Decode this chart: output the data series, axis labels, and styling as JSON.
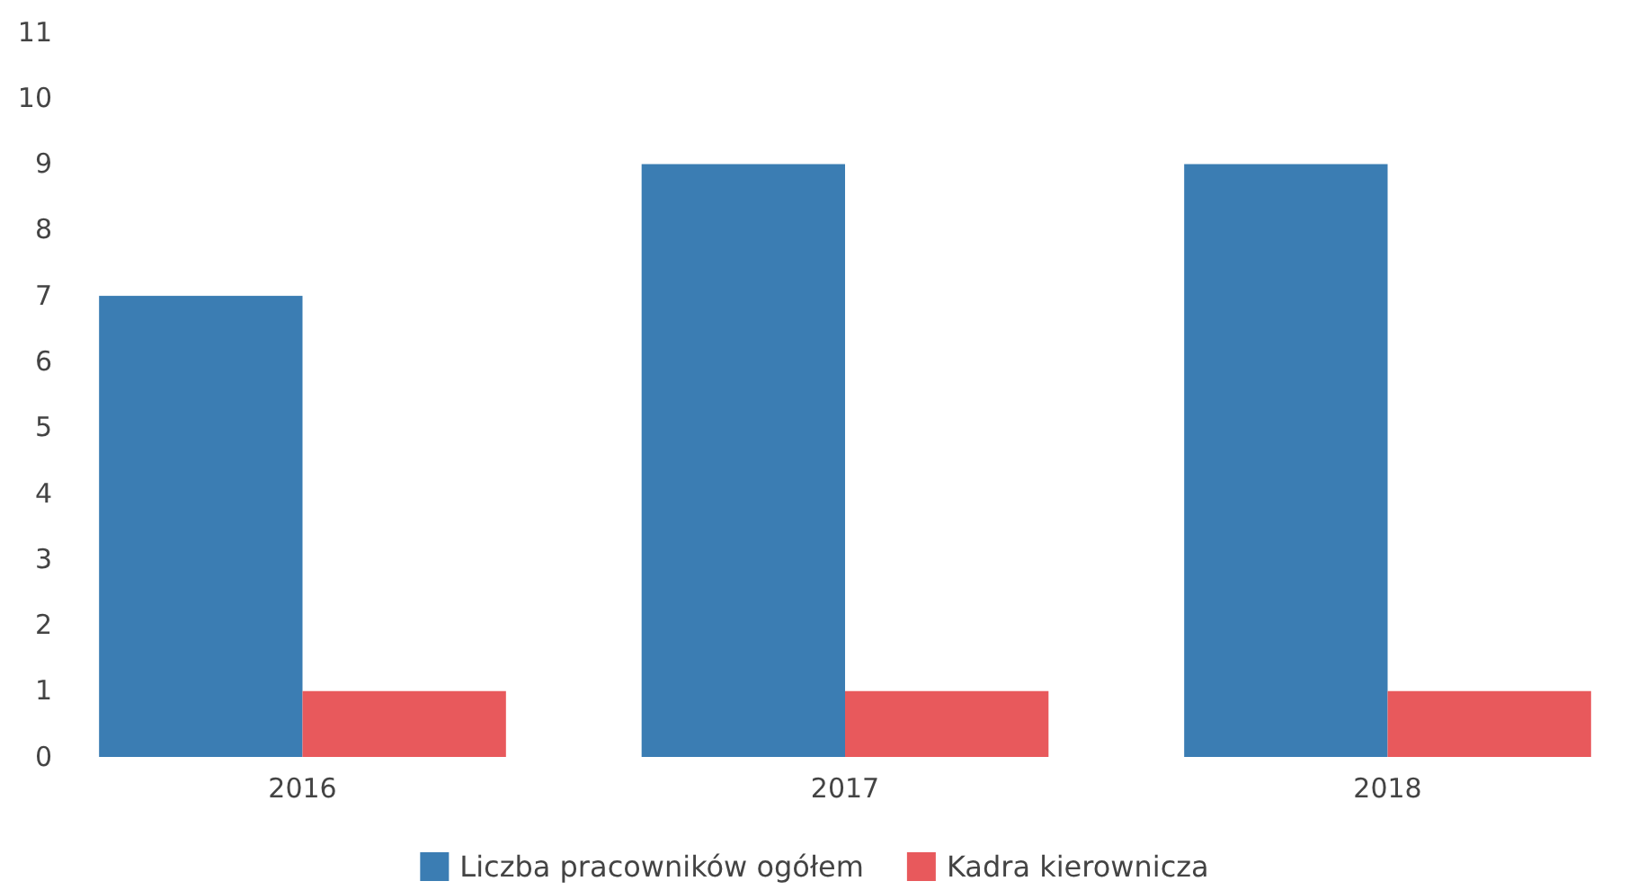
{
  "chart_data": {
    "type": "bar",
    "categories": [
      "2016",
      "2017",
      "2018"
    ],
    "series": [
      {
        "name": "Liczba pracowników ogółem",
        "color": "#3b7db3",
        "values": [
          7,
          9,
          9
        ]
      },
      {
        "name": "Kadra kierownicza",
        "color": "#e8595c",
        "values": [
          1,
          1,
          1
        ]
      }
    ],
    "ylim": [
      0,
      11
    ],
    "yticks": [
      0,
      1,
      2,
      3,
      4,
      5,
      6,
      7,
      8,
      9,
      10,
      11
    ],
    "grid": false,
    "legend": "bottom"
  }
}
